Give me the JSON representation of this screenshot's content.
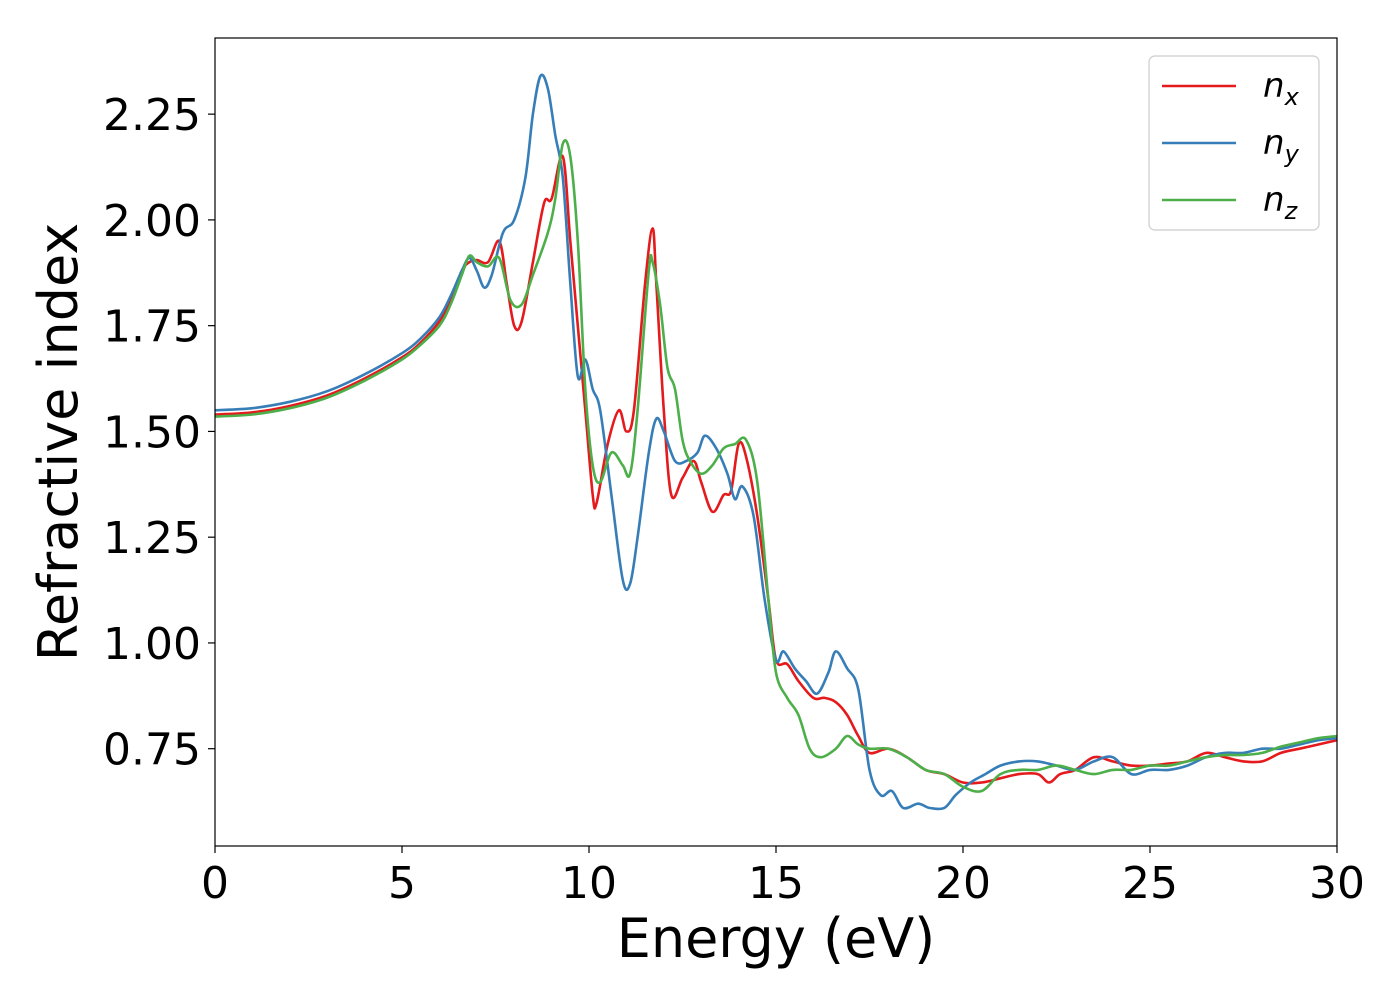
{
  "chart_data": {
    "type": "line",
    "title": "",
    "xlabel": "Energy (eV)",
    "ylabel": "Refractive index",
    "xlim": [
      0,
      30
    ],
    "ylim": [
      0.52,
      2.43
    ],
    "xticks": [
      0,
      5,
      10,
      15,
      20,
      25,
      30
    ],
    "yticks": [
      0.75,
      1.0,
      1.25,
      1.5,
      1.75,
      2.0,
      2.25
    ],
    "xtick_labels": [
      "0",
      "5",
      "10",
      "15",
      "20",
      "25",
      "30"
    ],
    "ytick_labels": [
      "0.75",
      "1.00",
      "1.25",
      "1.50",
      "1.75",
      "2.00",
      "2.25"
    ],
    "grid": false,
    "legend": "top-right",
    "series": [
      {
        "name": "n",
        "subscript": "x",
        "color": "#e41a1c",
        "points": [
          [
            0,
            1.54
          ],
          [
            1,
            1.545
          ],
          [
            2,
            1.56
          ],
          [
            3,
            1.585
          ],
          [
            4,
            1.625
          ],
          [
            5,
            1.675
          ],
          [
            5.5,
            1.71
          ],
          [
            6,
            1.76
          ],
          [
            6.3,
            1.81
          ],
          [
            6.6,
            1.88
          ],
          [
            6.8,
            1.9
          ],
          [
            7.0,
            1.905
          ],
          [
            7.3,
            1.9
          ],
          [
            7.6,
            1.95
          ],
          [
            7.8,
            1.85
          ],
          [
            8.0,
            1.75
          ],
          [
            8.2,
            1.76
          ],
          [
            8.5,
            1.9
          ],
          [
            8.8,
            2.04
          ],
          [
            9.0,
            2.05
          ],
          [
            9.3,
            2.15
          ],
          [
            9.5,
            1.95
          ],
          [
            9.7,
            1.75
          ],
          [
            9.9,
            1.55
          ],
          [
            10.1,
            1.35
          ],
          [
            10.2,
            1.33
          ],
          [
            10.5,
            1.47
          ],
          [
            10.8,
            1.55
          ],
          [
            11.0,
            1.5
          ],
          [
            11.2,
            1.55
          ],
          [
            11.5,
            1.85
          ],
          [
            11.7,
            1.98
          ],
          [
            11.8,
            1.85
          ],
          [
            12.0,
            1.55
          ],
          [
            12.2,
            1.35
          ],
          [
            12.5,
            1.39
          ],
          [
            12.8,
            1.43
          ],
          [
            13.0,
            1.38
          ],
          [
            13.3,
            1.31
          ],
          [
            13.6,
            1.35
          ],
          [
            13.8,
            1.36
          ],
          [
            14.0,
            1.47
          ],
          [
            14.2,
            1.44
          ],
          [
            14.5,
            1.3
          ],
          [
            14.8,
            1.1
          ],
          [
            15.0,
            0.96
          ],
          [
            15.3,
            0.95
          ],
          [
            15.6,
            0.91
          ],
          [
            16.0,
            0.87
          ],
          [
            16.3,
            0.87
          ],
          [
            16.6,
            0.86
          ],
          [
            16.9,
            0.83
          ],
          [
            17.2,
            0.78
          ],
          [
            17.5,
            0.74
          ],
          [
            18.0,
            0.75
          ],
          [
            18.5,
            0.73
          ],
          [
            19.0,
            0.7
          ],
          [
            19.5,
            0.69
          ],
          [
            20.0,
            0.67
          ],
          [
            20.5,
            0.67
          ],
          [
            21.0,
            0.68
          ],
          [
            21.5,
            0.69
          ],
          [
            22.0,
            0.69
          ],
          [
            22.3,
            0.67
          ],
          [
            22.6,
            0.69
          ],
          [
            23.0,
            0.7
          ],
          [
            23.5,
            0.73
          ],
          [
            24.0,
            0.72
          ],
          [
            24.5,
            0.71
          ],
          [
            25.0,
            0.71
          ],
          [
            25.5,
            0.715
          ],
          [
            26.0,
            0.72
          ],
          [
            26.5,
            0.74
          ],
          [
            27.0,
            0.73
          ],
          [
            27.5,
            0.72
          ],
          [
            28.0,
            0.72
          ],
          [
            28.5,
            0.74
          ],
          [
            29.0,
            0.75
          ],
          [
            29.5,
            0.76
          ],
          [
            30.0,
            0.77
          ]
        ]
      },
      {
        "name": "n",
        "subscript": "y",
        "color": "#377eb8",
        "points": [
          [
            0,
            1.55
          ],
          [
            1,
            1.555
          ],
          [
            2,
            1.57
          ],
          [
            3,
            1.595
          ],
          [
            4,
            1.635
          ],
          [
            5,
            1.685
          ],
          [
            5.5,
            1.72
          ],
          [
            6,
            1.77
          ],
          [
            6.3,
            1.82
          ],
          [
            6.6,
            1.88
          ],
          [
            6.8,
            1.91
          ],
          [
            7.0,
            1.88
          ],
          [
            7.2,
            1.84
          ],
          [
            7.4,
            1.87
          ],
          [
            7.7,
            1.97
          ],
          [
            8.0,
            2.0
          ],
          [
            8.3,
            2.1
          ],
          [
            8.5,
            2.25
          ],
          [
            8.7,
            2.34
          ],
          [
            8.9,
            2.31
          ],
          [
            9.1,
            2.2
          ],
          [
            9.3,
            2.1
          ],
          [
            9.5,
            1.85
          ],
          [
            9.7,
            1.63
          ],
          [
            9.9,
            1.67
          ],
          [
            10.1,
            1.6
          ],
          [
            10.3,
            1.55
          ],
          [
            10.6,
            1.35
          ],
          [
            10.9,
            1.15
          ],
          [
            11.1,
            1.14
          ],
          [
            11.3,
            1.25
          ],
          [
            11.6,
            1.45
          ],
          [
            11.8,
            1.53
          ],
          [
            12.0,
            1.5
          ],
          [
            12.3,
            1.43
          ],
          [
            12.6,
            1.43
          ],
          [
            12.9,
            1.45
          ],
          [
            13.1,
            1.49
          ],
          [
            13.4,
            1.46
          ],
          [
            13.7,
            1.4
          ],
          [
            13.9,
            1.34
          ],
          [
            14.1,
            1.37
          ],
          [
            14.4,
            1.3
          ],
          [
            14.7,
            1.1
          ],
          [
            15.0,
            0.96
          ],
          [
            15.2,
            0.98
          ],
          [
            15.5,
            0.94
          ],
          [
            15.8,
            0.91
          ],
          [
            16.1,
            0.88
          ],
          [
            16.4,
            0.93
          ],
          [
            16.6,
            0.98
          ],
          [
            16.9,
            0.94
          ],
          [
            17.2,
            0.89
          ],
          [
            17.5,
            0.7
          ],
          [
            17.8,
            0.64
          ],
          [
            18.1,
            0.65
          ],
          [
            18.4,
            0.61
          ],
          [
            18.8,
            0.62
          ],
          [
            19.1,
            0.61
          ],
          [
            19.5,
            0.61
          ],
          [
            19.8,
            0.64
          ],
          [
            20.2,
            0.67
          ],
          [
            20.6,
            0.69
          ],
          [
            21.0,
            0.71
          ],
          [
            21.5,
            0.72
          ],
          [
            22.0,
            0.72
          ],
          [
            22.5,
            0.71
          ],
          [
            23.0,
            0.7
          ],
          [
            23.5,
            0.72
          ],
          [
            24.0,
            0.73
          ],
          [
            24.5,
            0.69
          ],
          [
            25.0,
            0.7
          ],
          [
            25.5,
            0.7
          ],
          [
            26.0,
            0.71
          ],
          [
            26.5,
            0.73
          ],
          [
            27.0,
            0.74
          ],
          [
            27.5,
            0.74
          ],
          [
            28.0,
            0.75
          ],
          [
            28.5,
            0.75
          ],
          [
            29.0,
            0.76
          ],
          [
            29.5,
            0.77
          ],
          [
            30.0,
            0.775
          ]
        ]
      },
      {
        "name": "n",
        "subscript": "z",
        "color": "#4daf4a",
        "points": [
          [
            0,
            1.535
          ],
          [
            1,
            1.54
          ],
          [
            2,
            1.555
          ],
          [
            3,
            1.58
          ],
          [
            4,
            1.62
          ],
          [
            5,
            1.67
          ],
          [
            5.5,
            1.705
          ],
          [
            6,
            1.75
          ],
          [
            6.3,
            1.8
          ],
          [
            6.6,
            1.87
          ],
          [
            6.8,
            1.915
          ],
          [
            7.0,
            1.9
          ],
          [
            7.3,
            1.89
          ],
          [
            7.6,
            1.91
          ],
          [
            7.9,
            1.81
          ],
          [
            8.2,
            1.8
          ],
          [
            8.5,
            1.87
          ],
          [
            8.9,
            1.97
          ],
          [
            9.1,
            2.05
          ],
          [
            9.3,
            2.18
          ],
          [
            9.5,
            2.15
          ],
          [
            9.7,
            1.95
          ],
          [
            9.9,
            1.6
          ],
          [
            10.1,
            1.42
          ],
          [
            10.3,
            1.38
          ],
          [
            10.6,
            1.45
          ],
          [
            10.9,
            1.42
          ],
          [
            11.1,
            1.4
          ],
          [
            11.3,
            1.55
          ],
          [
            11.6,
            1.88
          ],
          [
            11.7,
            1.9
          ],
          [
            11.9,
            1.8
          ],
          [
            12.1,
            1.65
          ],
          [
            12.3,
            1.6
          ],
          [
            12.5,
            1.48
          ],
          [
            12.7,
            1.43
          ],
          [
            13.0,
            1.4
          ],
          [
            13.3,
            1.42
          ],
          [
            13.6,
            1.46
          ],
          [
            13.9,
            1.47
          ],
          [
            14.2,
            1.48
          ],
          [
            14.5,
            1.38
          ],
          [
            14.8,
            1.1
          ],
          [
            15.0,
            0.93
          ],
          [
            15.3,
            0.87
          ],
          [
            15.6,
            0.83
          ],
          [
            15.9,
            0.75
          ],
          [
            16.2,
            0.73
          ],
          [
            16.6,
            0.75
          ],
          [
            16.9,
            0.78
          ],
          [
            17.2,
            0.76
          ],
          [
            17.5,
            0.75
          ],
          [
            18.0,
            0.75
          ],
          [
            18.5,
            0.73
          ],
          [
            19.0,
            0.7
          ],
          [
            19.5,
            0.69
          ],
          [
            20.0,
            0.66
          ],
          [
            20.5,
            0.65
          ],
          [
            21.0,
            0.69
          ],
          [
            21.5,
            0.7
          ],
          [
            22.0,
            0.7
          ],
          [
            22.5,
            0.71
          ],
          [
            23.0,
            0.7
          ],
          [
            23.5,
            0.69
          ],
          [
            24.0,
            0.7
          ],
          [
            24.5,
            0.7
          ],
          [
            25.0,
            0.71
          ],
          [
            25.5,
            0.71
          ],
          [
            26.0,
            0.72
          ],
          [
            26.5,
            0.73
          ],
          [
            27.0,
            0.735
          ],
          [
            27.5,
            0.735
          ],
          [
            28.0,
            0.74
          ],
          [
            28.5,
            0.755
          ],
          [
            29.0,
            0.765
          ],
          [
            29.5,
            0.775
          ],
          [
            30.0,
            0.78
          ]
        ]
      }
    ]
  }
}
